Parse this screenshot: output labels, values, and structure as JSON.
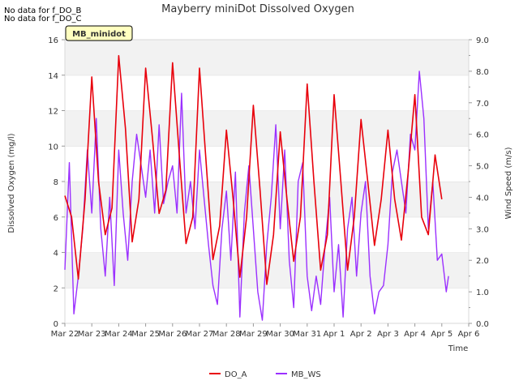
{
  "notes": [
    "No data for f_DO_B",
    "No data for f_DO_C"
  ],
  "station_badge": "MB_minidot",
  "chart_data": {
    "type": "line",
    "title": "Mayberry miniDot Dissolved Oxygen",
    "xlabel": "Time",
    "ylabel": "Dissolved Oxygen (mg/l)",
    "y2label": "Wind Speed (m/s)",
    "xlim": [
      "2023-03-22",
      "2023-04-06"
    ],
    "x_ticks": [
      "Mar 22",
      "Mar 23",
      "Mar 24",
      "Mar 25",
      "Mar 26",
      "Mar 27",
      "Mar 28",
      "Mar 29",
      "Mar 30",
      "Mar 31",
      "Apr 1",
      "Apr 2",
      "Apr 3",
      "Apr 4",
      "Apr 5",
      "Apr 6"
    ],
    "ylim": [
      0,
      16
    ],
    "y_ticks": [
      "0",
      "2",
      "4",
      "6",
      "8",
      "10",
      "12",
      "14",
      "16"
    ],
    "y2lim": [
      0,
      9
    ],
    "y2_ticks": [
      "0.0",
      "1.0",
      "2.0",
      "3.0",
      "4.0",
      "5.0",
      "6.0",
      "7.0",
      "8.0",
      "9.0"
    ],
    "grid": "horizontal bands",
    "legend_position": "bottom-center",
    "series": [
      {
        "name": "DO_A",
        "axis": "left",
        "color": "#e8000b",
        "points": [
          [
            "Mar 22 00:00",
            7.2
          ],
          [
            "Mar 22 06:00",
            6.0
          ],
          [
            "Mar 22 12:00",
            2.5
          ],
          [
            "Mar 22 18:00",
            7.0
          ],
          [
            "Mar 23 00:00",
            13.9
          ],
          [
            "Mar 23 06:00",
            8.0
          ],
          [
            "Mar 23 12:00",
            5.0
          ],
          [
            "Mar 23 18:00",
            6.5
          ],
          [
            "Mar 24 00:00",
            15.1
          ],
          [
            "Mar 24 06:00",
            11.0
          ],
          [
            "Mar 24 12:00",
            4.6
          ],
          [
            "Mar 24 18:00",
            7.0
          ],
          [
            "Mar 25 00:00",
            14.4
          ],
          [
            "Mar 25 06:00",
            10.5
          ],
          [
            "Mar 25 12:00",
            6.2
          ],
          [
            "Mar 25 18:00",
            7.5
          ],
          [
            "Mar 26 00:00",
            14.7
          ],
          [
            "Mar 26 06:00",
            9.5
          ],
          [
            "Mar 26 12:00",
            4.5
          ],
          [
            "Mar 26 18:00",
            6.0
          ],
          [
            "Mar 27 00:00",
            14.4
          ],
          [
            "Mar 27 06:00",
            9.0
          ],
          [
            "Mar 27 12:00",
            3.6
          ],
          [
            "Mar 27 18:00",
            5.5
          ],
          [
            "Mar 28 00:00",
            10.9
          ],
          [
            "Mar 28 06:00",
            7.0
          ],
          [
            "Mar 28 12:00",
            2.6
          ],
          [
            "Mar 28 18:00",
            6.0
          ],
          [
            "Mar 29 00:00",
            12.3
          ],
          [
            "Mar 29 06:00",
            7.5
          ],
          [
            "Mar 29 12:00",
            2.2
          ],
          [
            "Mar 29 18:00",
            5.0
          ],
          [
            "Mar 30 00:00",
            10.8
          ],
          [
            "Mar 30 06:00",
            7.0
          ],
          [
            "Mar 30 12:00",
            3.5
          ],
          [
            "Mar 30 18:00",
            6.0
          ],
          [
            "Mar 31 00:00",
            13.5
          ],
          [
            "Mar 31 06:00",
            8.0
          ],
          [
            "Mar 31 12:00",
            3.0
          ],
          [
            "Mar 31 18:00",
            5.0
          ],
          [
            "Apr 1 00:00",
            12.9
          ],
          [
            "Apr 1 06:00",
            8.0
          ],
          [
            "Apr 1 12:00",
            3.0
          ],
          [
            "Apr 1 18:00",
            6.0
          ],
          [
            "Apr 2 00:00",
            11.5
          ],
          [
            "Apr 2 06:00",
            8.0
          ],
          [
            "Apr 2 12:00",
            4.4
          ],
          [
            "Apr 2 18:00",
            7.0
          ],
          [
            "Apr 3 00:00",
            10.9
          ],
          [
            "Apr 3 06:00",
            7.0
          ],
          [
            "Apr 3 12:00",
            4.7
          ],
          [
            "Apr 3 18:00",
            8.5
          ],
          [
            "Apr 4 00:00",
            12.9
          ],
          [
            "Apr 4 06:00",
            6.0
          ],
          [
            "Apr 4 12:00",
            5.0
          ],
          [
            "Apr 4 18:00",
            9.5
          ],
          [
            "Apr 5 00:00",
            7.0
          ]
        ]
      },
      {
        "name": "MB_WS",
        "axis": "right",
        "color": "#9b30ff",
        "points": [
          [
            "Mar 22 00:00",
            1.7
          ],
          [
            "Mar 22 04:00",
            5.1
          ],
          [
            "Mar 22 08:00",
            0.3
          ],
          [
            "Mar 22 12:00",
            1.5
          ],
          [
            "Mar 22 16:00",
            3.0
          ],
          [
            "Mar 22 20:00",
            5.5
          ],
          [
            "Mar 23 00:00",
            3.5
          ],
          [
            "Mar 23 04:00",
            6.5
          ],
          [
            "Mar 23 08:00",
            3.0
          ],
          [
            "Mar 23 12:00",
            1.5
          ],
          [
            "Mar 23 16:00",
            4.0
          ],
          [
            "Mar 23 20:00",
            1.2
          ],
          [
            "Mar 24 00:00",
            5.5
          ],
          [
            "Mar 24 04:00",
            3.5
          ],
          [
            "Mar 24 08:00",
            2.0
          ],
          [
            "Mar 24 12:00",
            4.5
          ],
          [
            "Mar 24 16:00",
            6.0
          ],
          [
            "Mar 24 20:00",
            5.0
          ],
          [
            "Mar 25 00:00",
            4.0
          ],
          [
            "Mar 25 04:00",
            5.5
          ],
          [
            "Mar 25 08:00",
            3.5
          ],
          [
            "Mar 25 12:00",
            6.3
          ],
          [
            "Mar 25 16:00",
            3.8
          ],
          [
            "Mar 25 20:00",
            4.5
          ],
          [
            "Mar 26 00:00",
            5.0
          ],
          [
            "Mar 26 04:00",
            3.5
          ],
          [
            "Mar 26 08:00",
            7.3
          ],
          [
            "Mar 26 12:00",
            3.5
          ],
          [
            "Mar 26 16:00",
            4.5
          ],
          [
            "Mar 26 20:00",
            3.0
          ],
          [
            "Mar 27 00:00",
            5.5
          ],
          [
            "Mar 27 04:00",
            4.0
          ],
          [
            "Mar 27 08:00",
            2.5
          ],
          [
            "Mar 27 12:00",
            1.2
          ],
          [
            "Mar 27 16:00",
            0.6
          ],
          [
            "Mar 27 20:00",
            3.0
          ],
          [
            "Mar 28 00:00",
            4.2
          ],
          [
            "Mar 28 04:00",
            2.0
          ],
          [
            "Mar 28 08:00",
            4.8
          ],
          [
            "Mar 28 12:00",
            0.2
          ],
          [
            "Mar 28 16:00",
            3.5
          ],
          [
            "Mar 28 20:00",
            5.0
          ],
          [
            "Mar 29 00:00",
            3.0
          ],
          [
            "Mar 29 04:00",
            1.0
          ],
          [
            "Mar 29 08:00",
            0.1
          ],
          [
            "Mar 29 12:00",
            2.5
          ],
          [
            "Mar 29 16:00",
            4.0
          ],
          [
            "Mar 29 20:00",
            6.3
          ],
          [
            "Mar 30 00:00",
            3.0
          ],
          [
            "Mar 30 04:00",
            5.5
          ],
          [
            "Mar 30 08:00",
            2.0
          ],
          [
            "Mar 30 12:00",
            0.5
          ],
          [
            "Mar 30 16:00",
            4.5
          ],
          [
            "Mar 30 20:00",
            5.1
          ],
          [
            "Mar 31 00:00",
            1.5
          ],
          [
            "Mar 31 04:00",
            0.4
          ],
          [
            "Mar 31 08:00",
            1.5
          ],
          [
            "Mar 31 12:00",
            0.6
          ],
          [
            "Mar 31 16:00",
            2.5
          ],
          [
            "Mar 31 20:00",
            4.0
          ],
          [
            "Apr 1 00:00",
            1.0
          ],
          [
            "Apr 1 04:00",
            2.5
          ],
          [
            "Apr 1 08:00",
            0.2
          ],
          [
            "Apr 1 12:00",
            3.0
          ],
          [
            "Apr 1 16:00",
            4.0
          ],
          [
            "Apr 1 20:00",
            1.5
          ],
          [
            "Apr 2 00:00",
            3.5
          ],
          [
            "Apr 2 04:00",
            4.5
          ],
          [
            "Apr 2 08:00",
            1.5
          ],
          [
            "Apr 2 12:00",
            0.3
          ],
          [
            "Apr 2 16:00",
            1.0
          ],
          [
            "Apr 2 20:00",
            1.2
          ],
          [
            "Apr 3 00:00",
            2.5
          ],
          [
            "Apr 3 04:00",
            4.8
          ],
          [
            "Apr 3 08:00",
            5.5
          ],
          [
            "Apr 3 12:00",
            4.5
          ],
          [
            "Apr 3 16:00",
            3.5
          ],
          [
            "Apr 3 20:00",
            6.0
          ],
          [
            "Apr 4 00:00",
            5.5
          ],
          [
            "Apr 4 04:00",
            8.0
          ],
          [
            "Apr 4 08:00",
            6.5
          ],
          [
            "Apr 4 12:00",
            3.0
          ],
          [
            "Apr 4 16:00",
            4.5
          ],
          [
            "Apr 4 20:00",
            2.0
          ],
          [
            "Apr 5 00:00",
            2.2
          ],
          [
            "Apr 5 04:00",
            1.0
          ],
          [
            "Apr 5 06:00",
            1.5
          ]
        ]
      }
    ]
  }
}
